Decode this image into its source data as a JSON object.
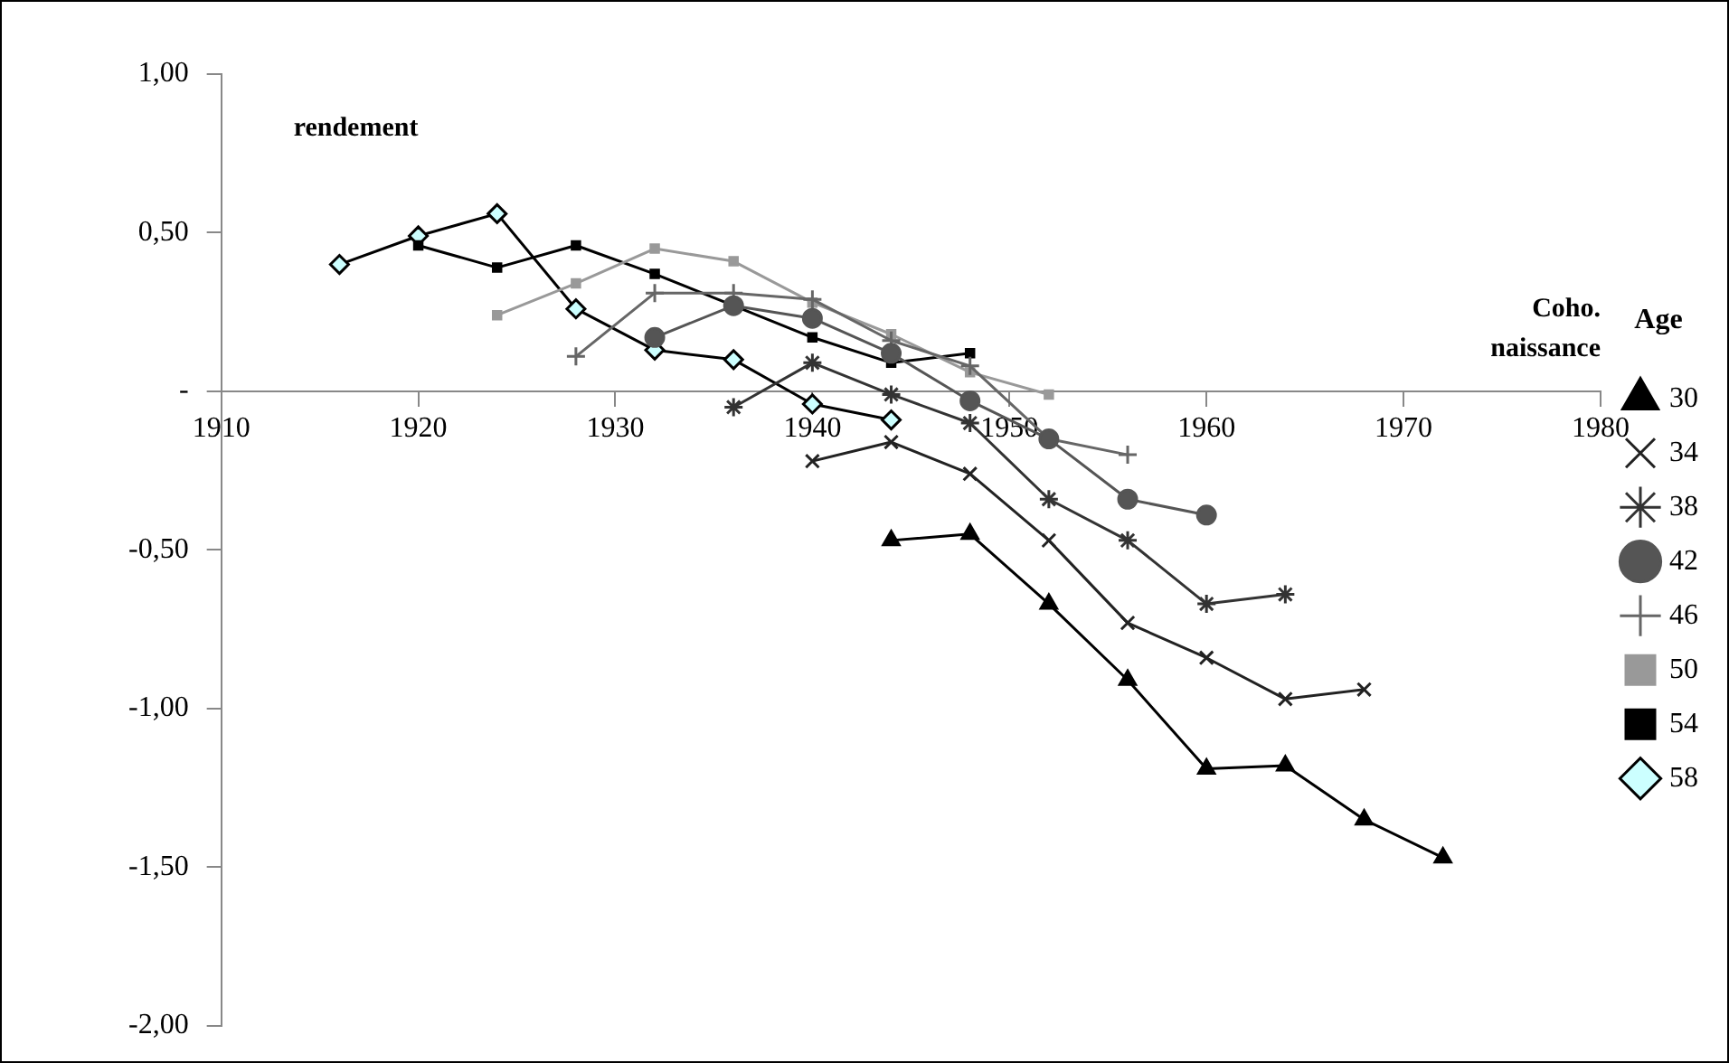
{
  "chart_data": {
    "type": "line",
    "xlabel": "Coho.\nnaissance",
    "ylabel": "rendement",
    "legend_title": "Age",
    "legend": "right",
    "grid": false,
    "line_style": "solid",
    "xlim": [
      1910,
      1980
    ],
    "xticks": [
      1910,
      1920,
      1930,
      1940,
      1950,
      1960,
      1970,
      1980
    ],
    "ylim": [
      -2,
      1
    ],
    "yticks": [
      {
        "value": -2,
        "label": "-2,00"
      },
      {
        "value": -1.5,
        "label": "-1,50"
      },
      {
        "value": -1,
        "label": "-1,00"
      },
      {
        "value": -0.5,
        "label": "-0,50"
      },
      {
        "value": 0,
        "label": "-"
      },
      {
        "value": 0.5,
        "label": "0,50"
      },
      {
        "value": 1,
        "label": "1,00"
      }
    ],
    "series": [
      {
        "name": "30",
        "color": "#000000",
        "marker": "triangle",
        "x": [
          1944,
          1948,
          1952,
          1956,
          1960,
          1964,
          1968,
          1972
        ],
        "values": [
          -0.47,
          -0.45,
          -0.67,
          -0.91,
          -1.19,
          -1.18,
          -1.35,
          -1.47
        ]
      },
      {
        "name": "34",
        "color": "#222222",
        "marker": "x",
        "x": [
          1940,
          1944,
          1948,
          1952,
          1956,
          1960,
          1964,
          1968
        ],
        "values": [
          -0.22,
          -0.16,
          -0.26,
          -0.47,
          -0.73,
          -0.84,
          -0.97,
          -0.94
        ]
      },
      {
        "name": "38",
        "color": "#333333",
        "marker": "cross",
        "x": [
          1936,
          1940,
          1944,
          1948,
          1952,
          1956,
          1960,
          1964
        ],
        "values": [
          -0.05,
          0.09,
          -0.01,
          -0.1,
          -0.34,
          -0.47,
          -0.67,
          -0.64
        ]
      },
      {
        "name": "42",
        "color": "#555555",
        "marker": "circle",
        "x": [
          1932,
          1936,
          1940,
          1944,
          1948,
          1952,
          1956,
          1960
        ],
        "values": [
          0.17,
          0.27,
          0.23,
          0.12,
          -0.03,
          -0.15,
          -0.34,
          -0.39
        ]
      },
      {
        "name": "46",
        "color": "#666666",
        "marker": "plus",
        "x": [
          1928,
          1932,
          1936,
          1940,
          1944,
          1948,
          1952,
          1956
        ],
        "values": [
          0.11,
          0.31,
          0.31,
          0.29,
          0.16,
          0.08,
          -0.15,
          -0.2
        ]
      },
      {
        "name": "50",
        "color": "#999999",
        "marker": "square",
        "x": [
          1924,
          1928,
          1932,
          1936,
          1940,
          1944,
          1948,
          1952
        ],
        "values": [
          0.24,
          0.34,
          0.45,
          0.41,
          0.28,
          0.18,
          0.06,
          -0.01
        ]
      },
      {
        "name": "54",
        "color": "#000000",
        "marker": "square",
        "x": [
          1920,
          1924,
          1928,
          1932,
          1936,
          1940,
          1944,
          1948
        ],
        "values": [
          0.46,
          0.39,
          0.46,
          0.37,
          0.27,
          0.17,
          0.09,
          0.12
        ]
      },
      {
        "name": "58",
        "color": "#000000",
        "marker": "diamond",
        "x": [
          1916,
          1920,
          1924,
          1928,
          1932,
          1936,
          1940,
          1944
        ],
        "values": [
          0.4,
          0.49,
          0.56,
          0.26,
          0.13,
          0.1,
          -0.04,
          -0.09
        ]
      }
    ]
  }
}
